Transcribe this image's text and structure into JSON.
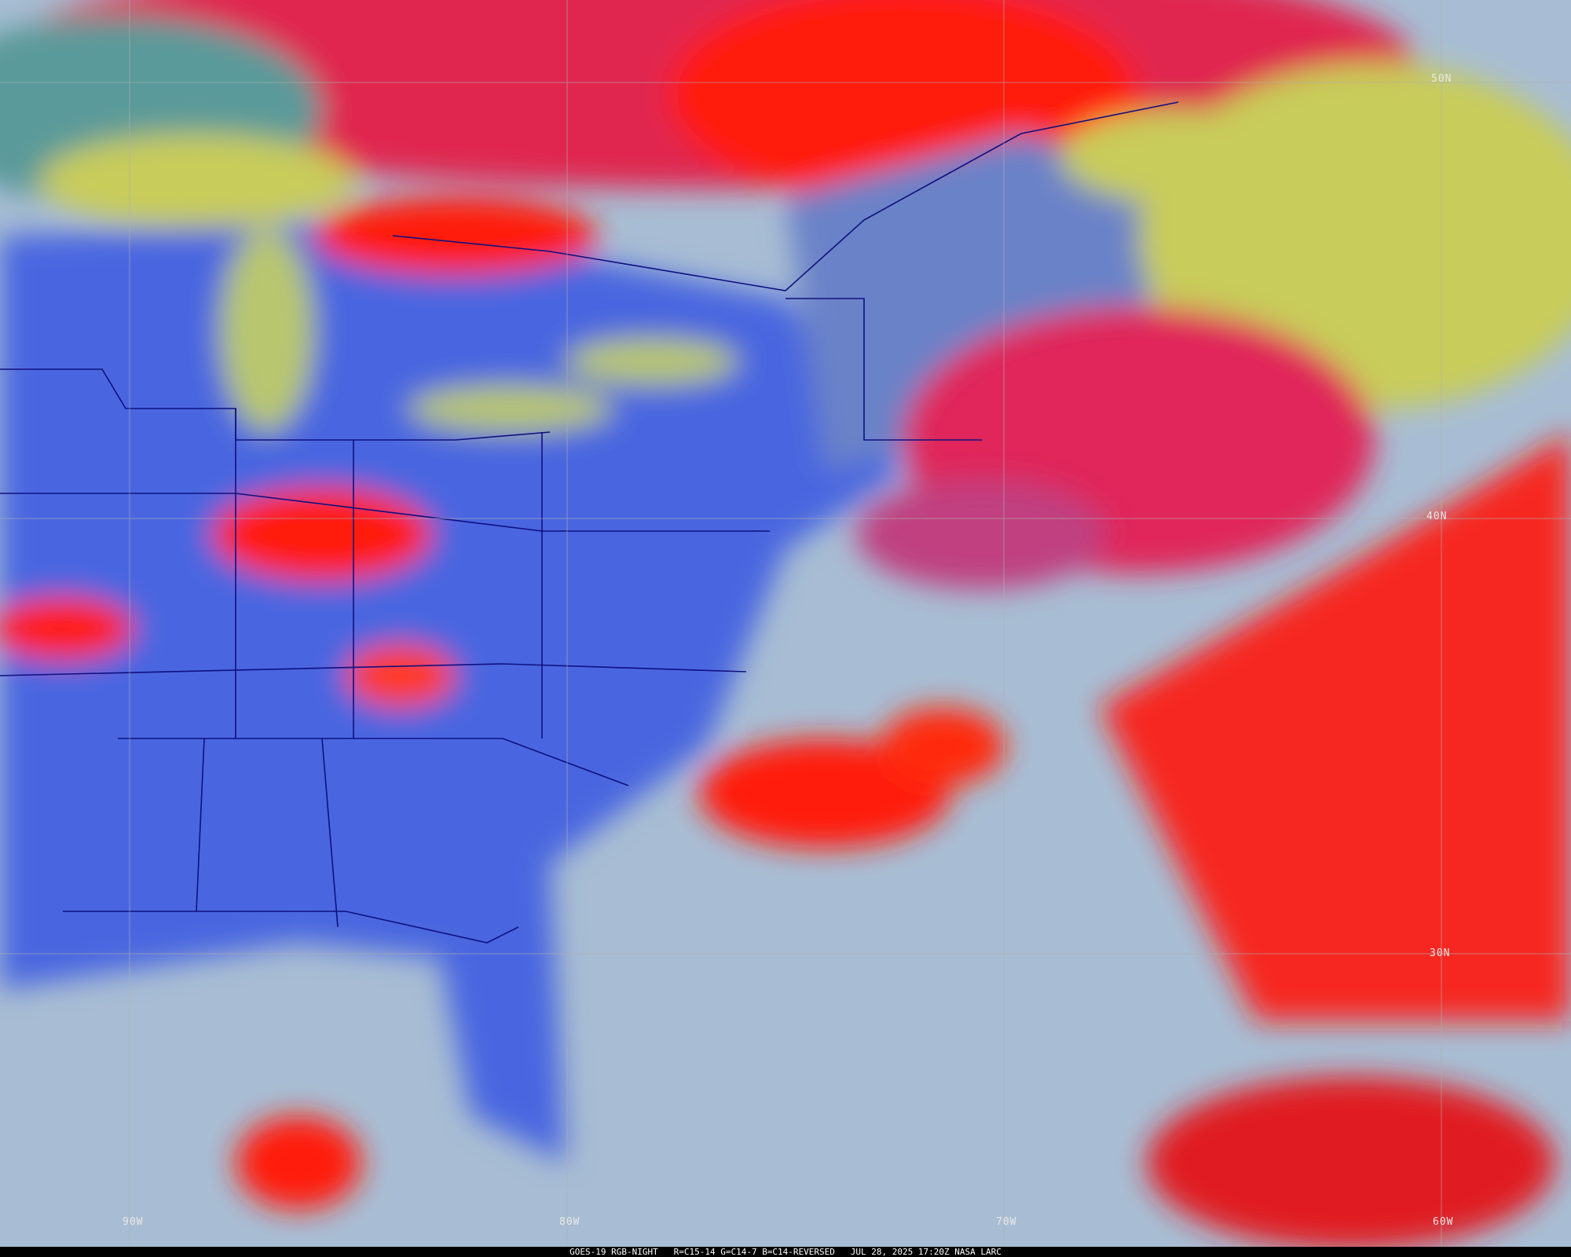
{
  "image": {
    "caption": "GOES-19 RGB-NIGHT   R=C15-14 G=C14-7 B=C14-REVERSED   JUL 28, 2025 17:20Z NASA LARC",
    "lat_labels": [
      "50N",
      "40N",
      "30N"
    ],
    "lon_labels": [
      "90W",
      "80W",
      "70W",
      "60W"
    ],
    "colors": {
      "thick_cloud": "#ff1a1a",
      "high_cloud": "#e0285a",
      "water": "#c8cc5a",
      "land": "#4a66e0",
      "ocean": "#a9bfd4",
      "borders": "#101080",
      "grid": "#b0b0b0"
    }
  }
}
